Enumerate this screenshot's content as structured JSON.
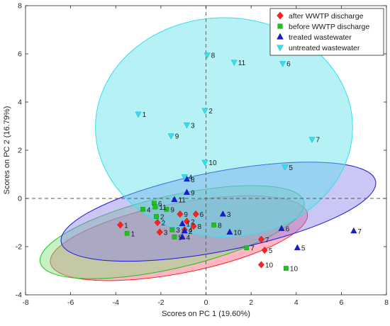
{
  "chart_data": {
    "type": "scatter",
    "title": "",
    "xlabel": "Scores on PC 1 (19.60%)",
    "ylabel": "Scores on PC 2 (16.79%)",
    "xlim": [
      -8,
      8
    ],
    "ylim": [
      -4,
      8
    ],
    "xticks": [
      -8,
      -6,
      -4,
      -2,
      0,
      2,
      4,
      6,
      8
    ],
    "yticks": [
      -4,
      -2,
      0,
      2,
      4,
      6,
      8
    ],
    "grid": false,
    "reference_lines": {
      "x": 0,
      "y": 0,
      "style": "dashed"
    },
    "legend": {
      "placement": "top-right",
      "entries": [
        {
          "label": "after WWTP discharge",
          "marker": "diamond",
          "color": "#ff2020"
        },
        {
          "label": "before WWTP discharge",
          "marker": "square",
          "color": "#20c020"
        },
        {
          "label": "treated wastewater",
          "marker": "triangle-up",
          "color": "#1a1ad6"
        },
        {
          "label": "untreated wastewater",
          "marker": "triangle-down",
          "color": "#33e0f0"
        }
      ]
    },
    "series": [
      {
        "name": "after WWTP discharge",
        "marker": "diamond",
        "color": "#ff2020",
        "ellipse": {
          "cx": -1.2,
          "cy": -1.65,
          "rx": 5.8,
          "ry": 1.45,
          "angle": -11,
          "fill": "#ff5a7a"
        },
        "points": [
          {
            "label": "1",
            "x": -3.8,
            "y": -1.1
          },
          {
            "label": "2",
            "x": -2.15,
            "y": -1.0
          },
          {
            "label": "3",
            "x": -2.05,
            "y": -1.4
          },
          {
            "label": "4",
            "x": -0.95,
            "y": -1.3
          },
          {
            "label": "5",
            "x": 2.6,
            "y": -2.15
          },
          {
            "label": "6",
            "x": -0.45,
            "y": -0.65
          },
          {
            "label": "7",
            "x": 2.45,
            "y": -1.7
          },
          {
            "label": "8",
            "x": -0.55,
            "y": -1.15
          },
          {
            "label": "9",
            "x": -1.15,
            "y": -0.65
          },
          {
            "label": "10",
            "x": 2.45,
            "y": -2.75
          },
          {
            "label": "2",
            "x": -0.85,
            "y": -0.95
          }
        ]
      },
      {
        "name": "before WWTP discharge",
        "marker": "square",
        "color": "#20c020",
        "ellipse": {
          "cx": -1.5,
          "cy": -1.4,
          "rx": 6.0,
          "ry": 1.5,
          "angle": -13,
          "fill": "#7ee07e"
        },
        "points": [
          {
            "label": "1",
            "x": -3.5,
            "y": -1.45
          },
          {
            "label": "2",
            "x": -2.2,
            "y": -0.75
          },
          {
            "label": "3",
            "x": -1.5,
            "y": -1.3
          },
          {
            "label": "4",
            "x": -2.8,
            "y": -0.45
          },
          {
            "label": "5",
            "x": -1.4,
            "y": -1.6
          },
          {
            "label": "6",
            "x": -2.3,
            "y": -0.2
          },
          {
            "label": "7",
            "x": 1.8,
            "y": -2.05
          },
          {
            "label": "8",
            "x": 0.35,
            "y": -1.1
          },
          {
            "label": "9",
            "x": -1.75,
            "y": -0.45
          },
          {
            "label": "10",
            "x": 3.55,
            "y": -2.9
          },
          {
            "label": "11",
            "x": -2.25,
            "y": -0.35
          }
        ]
      },
      {
        "name": "treated wastewater",
        "marker": "triangle-up",
        "color": "#1a1ad6",
        "ellipse": {
          "cx": 0.55,
          "cy": -0.55,
          "rx": 7.1,
          "ry": 1.65,
          "angle": -11,
          "fill": "#8a80e8"
        },
        "points": [
          {
            "label": "1",
            "x": -1.05,
            "y": -1.05
          },
          {
            "label": "2",
            "x": -0.95,
            "y": -1.35
          },
          {
            "label": "3",
            "x": 0.75,
            "y": -0.65
          },
          {
            "label": "4",
            "x": -1.05,
            "y": -1.6
          },
          {
            "label": "5",
            "x": 4.05,
            "y": -2.05
          },
          {
            "label": "6",
            "x": 3.35,
            "y": -1.25
          },
          {
            "label": "7",
            "x": 6.55,
            "y": -1.35
          },
          {
            "label": "8",
            "x": -0.85,
            "y": 0.8
          },
          {
            "label": "9",
            "x": -0.85,
            "y": 0.25
          },
          {
            "label": "10",
            "x": 1.05,
            "y": -1.4
          },
          {
            "label": "11",
            "x": -1.4,
            "y": -0.05
          }
        ]
      },
      {
        "name": "untreated wastewater",
        "marker": "triangle-down",
        "color": "#33e0f0",
        "ellipse": {
          "cx": 0.8,
          "cy": 2.95,
          "rx": 5.7,
          "ry": 4.55,
          "angle": 0,
          "fill": "#5de0ea"
        },
        "points": [
          {
            "label": "1",
            "x": -3.0,
            "y": 3.5
          },
          {
            "label": "2",
            "x": -0.05,
            "y": 3.65
          },
          {
            "label": "3",
            "x": -0.85,
            "y": 3.05
          },
          {
            "label": "4",
            "x": -0.95,
            "y": 0.9
          },
          {
            "label": "5",
            "x": 3.5,
            "y": 1.3
          },
          {
            "label": "6",
            "x": 3.4,
            "y": 5.6
          },
          {
            "label": "7",
            "x": 4.7,
            "y": 2.45
          },
          {
            "label": "8",
            "x": 0.05,
            "y": 5.95
          },
          {
            "label": "9",
            "x": -1.55,
            "y": 2.6
          },
          {
            "label": "10",
            "x": -0.05,
            "y": 1.5
          },
          {
            "label": "11",
            "x": 1.25,
            "y": 5.65
          }
        ]
      }
    ]
  }
}
